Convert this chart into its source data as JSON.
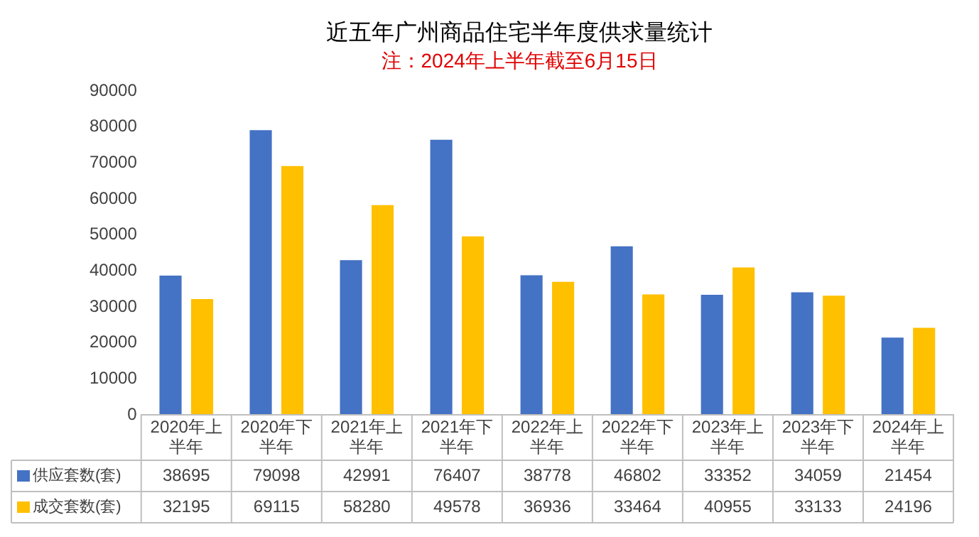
{
  "chart_data": {
    "type": "bar",
    "title": "近五年广州商品住宅半年度供求量统计",
    "subtitle": "注：2024年上半年截至6月15日",
    "categories": [
      "2020年上半年",
      "2020年下半年",
      "2021年上半年",
      "2021年下半年",
      "2022年上半年",
      "2022年下半年",
      "2023年上半年",
      "2023年下半年",
      "2024年上半年"
    ],
    "series": [
      {
        "name": "供应套数(套)",
        "color": "#4472c4",
        "values": [
          38695,
          79098,
          42991,
          76407,
          38778,
          46802,
          33352,
          34059,
          21454
        ]
      },
      {
        "name": "成交套数(套)",
        "color": "#ffc000",
        "values": [
          32195,
          69115,
          58280,
          49578,
          36936,
          33464,
          40955,
          33133,
          24196
        ]
      }
    ],
    "ylim": [
      0,
      90000
    ],
    "yticks": [
      0,
      10000,
      20000,
      30000,
      40000,
      50000,
      60000,
      70000,
      80000,
      90000
    ],
    "grid": false,
    "legend": "bottom",
    "data_labels": true
  }
}
